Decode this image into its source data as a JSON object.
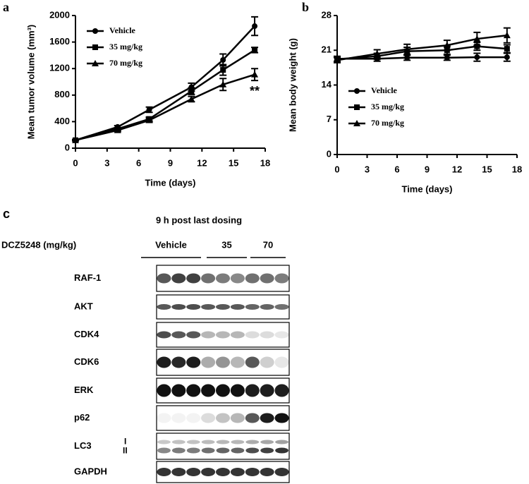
{
  "chart_data": [
    {
      "type": "line",
      "panel": "a",
      "xlabel": "Time (days)",
      "ylabel": "Mean tumor volume (mm³)",
      "x": [
        0,
        4,
        7,
        11,
        14,
        17
      ],
      "xlim": [
        0,
        18
      ],
      "xticks": [
        0,
        3,
        6,
        9,
        12,
        15,
        18
      ],
      "ylim": [
        0,
        2000
      ],
      "yticks": [
        0,
        400,
        800,
        1200,
        1600,
        2000
      ],
      "legend": "upper left",
      "annotation": "**",
      "series": [
        {
          "name": "Vehicle",
          "color": "#000000",
          "marker": "circle",
          "values": [
            120,
            320,
            580,
            920,
            1330,
            1840
          ],
          "errors": [
            10,
            20,
            40,
            60,
            90,
            140
          ]
        },
        {
          "name": "35 mg/kg",
          "color": "#000000",
          "marker": "square",
          "values": [
            120,
            290,
            440,
            860,
            1180,
            1480
          ],
          "errors": [
            10,
            20,
            30,
            50,
            80,
            40
          ]
        },
        {
          "name": "70 mg/kg",
          "color": "#000000",
          "marker": "triangle",
          "values": [
            120,
            270,
            420,
            740,
            960,
            1110
          ],
          "errors": [
            10,
            20,
            30,
            40,
            90,
            90
          ]
        }
      ]
    },
    {
      "type": "line",
      "panel": "b",
      "xlabel": "Time (days)",
      "ylabel": "Mean body weight (g)",
      "x": [
        0,
        4,
        7,
        11,
        14,
        17
      ],
      "xlim": [
        0,
        18
      ],
      "xticks": [
        0,
        3,
        6,
        9,
        12,
        15,
        18
      ],
      "ylim": [
        0,
        28
      ],
      "yticks": [
        0,
        7,
        14,
        21,
        28
      ],
      "legend": "lower left",
      "series": [
        {
          "name": "Vehicle",
          "color": "#000000",
          "marker": "circle",
          "values": [
            19.3,
            19.3,
            19.5,
            19.5,
            19.6,
            19.6
          ],
          "errors": [
            0.5,
            0.5,
            0.5,
            0.5,
            0.8,
            0.8
          ]
        },
        {
          "name": "35 mg/kg",
          "color": "#000000",
          "marker": "square",
          "values": [
            19.2,
            19.8,
            20.8,
            21.0,
            21.8,
            21.3
          ],
          "errors": [
            0.5,
            0.6,
            0.8,
            0.8,
            0.8,
            0.8
          ]
        },
        {
          "name": "70 mg/kg",
          "color": "#000000",
          "marker": "triangle",
          "values": [
            19.0,
            20.3,
            21.2,
            22.0,
            23.3,
            24.0
          ],
          "errors": [
            0.5,
            0.8,
            1.0,
            1.0,
            1.3,
            1.5
          ]
        }
      ]
    }
  ],
  "blot": {
    "panel": "c",
    "title": "9 h post last dosing",
    "treatment": "DCZ5248 (mg/kg)",
    "groups": [
      "Vehicle",
      "35",
      "70"
    ],
    "rows": [
      "RAF-1",
      "AKT",
      "CDK4",
      "CDK6",
      "ERK",
      "p62",
      "LC3",
      "GAPDH"
    ],
    "lc3_bands": [
      "I",
      "II"
    ]
  }
}
